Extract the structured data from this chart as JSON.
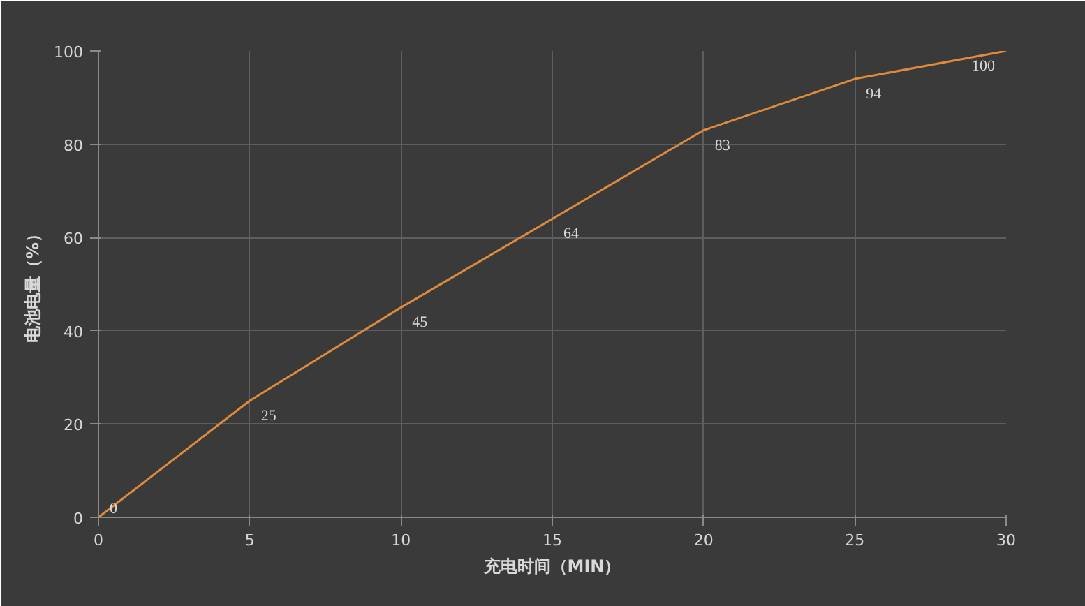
{
  "chart_data": {
    "type": "line",
    "xlabel": "充电时间（MIN）",
    "ylabel": "电池电量（%）",
    "x": [
      0,
      5,
      10,
      15,
      20,
      25,
      30
    ],
    "series": [
      {
        "color": "#e08a3c",
        "values": [
          0,
          25,
          45,
          64,
          83,
          94,
          100
        ]
      }
    ],
    "xlim": [
      0,
      30
    ],
    "xticks": [
      0,
      5,
      10,
      15,
      20,
      25,
      30
    ],
    "ylim": [
      0,
      100
    ],
    "yticks": [
      0,
      20,
      40,
      60,
      80,
      100
    ],
    "grid": true,
    "marker": "none",
    "line_style": "solid",
    "data_labels": true
  }
}
